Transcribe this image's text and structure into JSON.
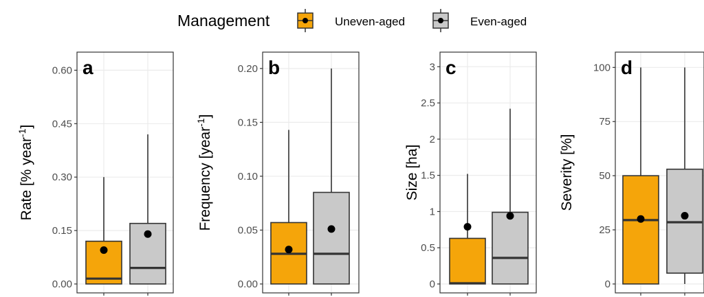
{
  "legend": {
    "title": "Management",
    "entries": [
      {
        "label": "Uneven-aged",
        "color": "#f5a50a"
      },
      {
        "label": "Even-aged",
        "color": "#c9c9c9"
      }
    ]
  },
  "chart_data": [
    {
      "type": "box",
      "panel": "a",
      "ylabel": "Rate [% year",
      "ylabel_sup": "-1",
      "ylabel_end": "]",
      "ylim": [
        0,
        0.62
      ],
      "ticks": [
        0,
        0.15,
        0.3,
        0.45,
        0.6
      ],
      "tick_labels": [
        "0.00",
        "0.15",
        "0.30",
        "0.45",
        "0.60"
      ],
      "series": [
        {
          "name": "Uneven-aged",
          "min": 0,
          "q1": 0,
          "median": 0.015,
          "q3": 0.12,
          "max": 0.3,
          "mean": 0.095
        },
        {
          "name": "Even-aged",
          "min": 0,
          "q1": 0,
          "median": 0.045,
          "q3": 0.17,
          "max": 0.42,
          "mean": 0.14
        }
      ]
    },
    {
      "type": "box",
      "panel": "b",
      "ylabel": "Frequency [year",
      "ylabel_sup": "-1",
      "ylabel_end": "]",
      "ylim": [
        0,
        0.205
      ],
      "ticks": [
        0,
        0.05,
        0.1,
        0.15,
        0.2
      ],
      "tick_labels": [
        "0.00",
        "0.05",
        "0.10",
        "0.15",
        "0.20"
      ],
      "series": [
        {
          "name": "Uneven-aged",
          "min": 0,
          "q1": 0,
          "median": 0.028,
          "q3": 0.057,
          "max": 0.143,
          "mean": 0.032
        },
        {
          "name": "Even-aged",
          "min": 0,
          "q1": 0,
          "median": 0.028,
          "q3": 0.085,
          "max": 0.2,
          "mean": 0.051
        }
      ]
    },
    {
      "type": "box",
      "panel": "c",
      "ylabel": "Size [ha]",
      "ylabel_sup": "",
      "ylabel_end": "",
      "ylim": [
        0,
        3.05
      ],
      "ticks": [
        0,
        0.5,
        1,
        1.5,
        2,
        2.5,
        3
      ],
      "tick_labels": [
        "0",
        "0.5",
        "1",
        "1.5",
        "2",
        "2.5",
        "3"
      ],
      "series": [
        {
          "name": "Uneven-aged",
          "min": 0,
          "q1": 0,
          "median": 0.01,
          "q3": 0.63,
          "max": 1.52,
          "mean": 0.79
        },
        {
          "name": "Even-aged",
          "min": 0,
          "q1": 0,
          "median": 0.36,
          "q3": 0.99,
          "max": 2.42,
          "mean": 0.94
        }
      ]
    },
    {
      "type": "box",
      "panel": "d",
      "ylabel": "Severity [%]",
      "ylabel_sup": "",
      "ylabel_end": "",
      "ylim": [
        0,
        102
      ],
      "ticks": [
        0,
        25,
        50,
        75,
        100
      ],
      "tick_labels": [
        "0",
        "25",
        "50",
        "75",
        "100"
      ],
      "series": [
        {
          "name": "Uneven-aged",
          "min": 0,
          "q1": 0,
          "median": 29.5,
          "q3": 50,
          "max": 100,
          "mean": 30
        },
        {
          "name": "Even-aged",
          "min": 0,
          "q1": 5,
          "median": 28.5,
          "q3": 53,
          "max": 100,
          "mean": 31.5
        }
      ]
    }
  ]
}
